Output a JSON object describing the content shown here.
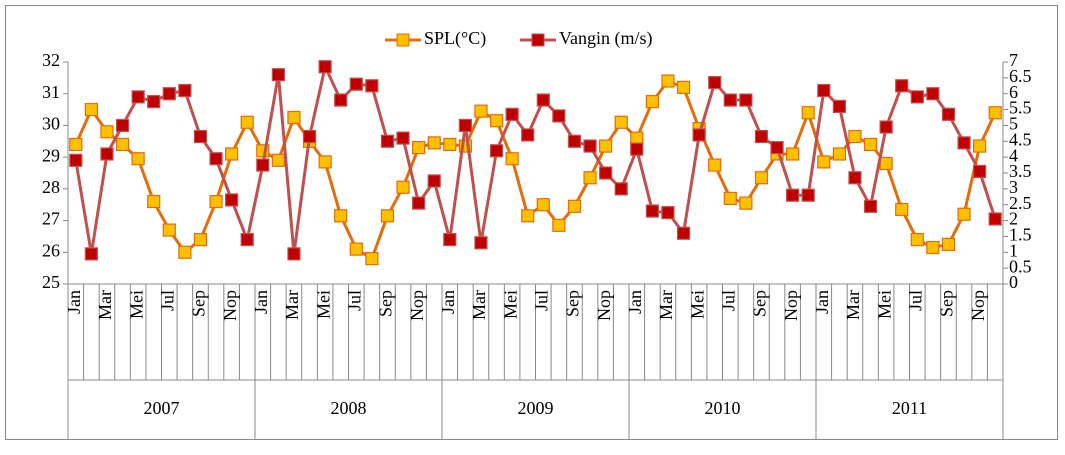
{
  "chart_data": {
    "type": "line",
    "categories": [
      "Jan",
      null,
      "Mar",
      null,
      "Mei",
      null,
      "Jul",
      null,
      "Sep",
      null,
      "Nop",
      null,
      "Jan",
      null,
      "Mar",
      null,
      "Mei",
      null,
      "Jul",
      null,
      "Sep",
      null,
      "Nop",
      null,
      "Jan",
      null,
      "Mar",
      null,
      "Mei",
      null,
      "Jul",
      null,
      "Sep",
      null,
      "Nop",
      null,
      "Jan",
      null,
      "Mar",
      null,
      "Mei",
      null,
      "Jul",
      null,
      "Sep",
      null,
      "Nop",
      null,
      "Jan",
      null,
      "Mar",
      null,
      "Mei",
      null,
      "Jul",
      null,
      "Sep",
      null,
      "Nop",
      null
    ],
    "groups": [
      "2007",
      "2008",
      "2009",
      "2010",
      "2011"
    ],
    "series": [
      {
        "name": "SPL(°C)",
        "color": "#e46c0a",
        "marker_color": "#ffc000",
        "values": [
          29.4,
          30.5,
          29.8,
          29.4,
          28.95,
          27.6,
          26.7,
          26.0,
          26.4,
          27.6,
          29.1,
          30.1,
          29.2,
          28.9,
          30.25,
          29.5,
          28.85,
          27.15,
          26.1,
          25.8,
          27.15,
          28.05,
          29.3,
          29.45,
          29.4,
          29.35,
          30.45,
          30.15,
          28.95,
          27.15,
          27.5,
          26.85,
          27.45,
          28.35,
          29.35,
          30.1,
          29.6,
          30.75,
          31.4,
          31.2,
          29.9,
          28.75,
          27.7,
          27.55,
          28.35,
          29.1,
          29.1,
          30.4,
          28.85,
          29.1,
          29.65,
          29.4,
          28.8,
          27.35,
          26.4,
          26.15,
          26.25,
          27.2,
          29.35,
          30.4
        ]
      },
      {
        "name": "Vangin (m/s)",
        "color": "#c0504d",
        "marker_color": "#c00000",
        "axis": "y2",
        "values": [
          3.9,
          0.95,
          4.1,
          5.0,
          5.9,
          5.75,
          6.0,
          6.1,
          4.65,
          3.95,
          2.65,
          1.4,
          3.75,
          6.6,
          0.95,
          4.65,
          6.85,
          5.8,
          6.3,
          6.25,
          4.5,
          4.6,
          2.55,
          3.25,
          1.4,
          5.0,
          1.3,
          4.2,
          5.35,
          4.7,
          5.8,
          5.3,
          4.5,
          4.35,
          3.5,
          3.0,
          4.25,
          2.3,
          2.25,
          1.6,
          4.7,
          6.35,
          5.8,
          5.8,
          4.65,
          4.3,
          2.8,
          2.8,
          6.1,
          5.6,
          3.35,
          2.45,
          4.95,
          6.25,
          5.9,
          6.0,
          5.35,
          4.45,
          3.55,
          2.05
        ]
      }
    ],
    "ylim": [
      25,
      32
    ],
    "yticks": [
      25,
      26,
      27,
      28,
      29,
      30,
      31,
      32
    ],
    "y2lim": [
      0,
      7
    ],
    "y2ticks": [
      0,
      0.5,
      1,
      1.5,
      2,
      2.5,
      3,
      3.5,
      4,
      4.5,
      5,
      5.5,
      6,
      6.5,
      7
    ],
    "legend": "top"
  }
}
